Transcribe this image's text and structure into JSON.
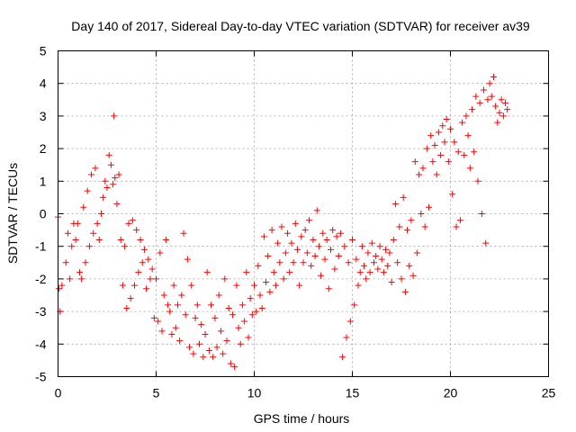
{
  "chart_data": {
    "type": "scatter",
    "title": "Day 140 of 2017, Sidereal Day-to-day VTEC variation (SDTVAR) for receiver av39",
    "xlabel": "GPS time / hours",
    "ylabel": "SDTVAR / TECUs",
    "xlim": [
      0,
      25
    ],
    "ylim": [
      -5,
      5
    ],
    "xticks": [
      0,
      5,
      10,
      15,
      20,
      25
    ],
    "yticks": [
      -5,
      -4,
      -3,
      -2,
      -1,
      0,
      1,
      2,
      3,
      4,
      5
    ],
    "grid": true,
    "marker": "+",
    "color": "#ff0000",
    "series": [
      {
        "name": "SDTVAR",
        "points": [
          [
            0.0,
            -0.1
          ],
          [
            0.05,
            -2.3
          ],
          [
            0.1,
            -3.0
          ],
          [
            0.2,
            -2.2
          ],
          [
            0.4,
            -1.5
          ],
          [
            0.5,
            -0.6
          ],
          [
            0.6,
            -2.0
          ],
          [
            0.7,
            -1.0
          ],
          [
            0.8,
            -0.3
          ],
          [
            0.9,
            -0.8
          ],
          [
            1.0,
            -0.3
          ],
          [
            1.1,
            -1.8
          ],
          [
            1.2,
            -2.0
          ],
          [
            1.3,
            0.2
          ],
          [
            1.4,
            -1.5
          ],
          [
            1.5,
            0.7
          ],
          [
            1.6,
            -1.0
          ],
          [
            1.7,
            1.2
          ],
          [
            1.8,
            -0.6
          ],
          [
            1.9,
            1.4
          ],
          [
            2.0,
            -0.3
          ],
          [
            2.1,
            -0.8
          ],
          [
            2.2,
            0.0
          ],
          [
            2.3,
            0.5
          ],
          [
            2.4,
            1.0
          ],
          [
            2.5,
            0.8
          ],
          [
            2.6,
            1.8
          ],
          [
            2.7,
            1.5
          ],
          [
            2.8,
            0.9
          ],
          [
            2.85,
            3.0
          ],
          [
            2.9,
            1.1
          ],
          [
            3.0,
            0.3
          ],
          [
            3.1,
            1.2
          ],
          [
            3.2,
            -0.8
          ],
          [
            3.3,
            -2.2
          ],
          [
            3.4,
            -1.0
          ],
          [
            3.5,
            -2.9
          ],
          [
            3.6,
            -0.3
          ],
          [
            3.7,
            -2.6
          ],
          [
            3.8,
            -0.2
          ],
          [
            3.9,
            -2.2
          ],
          [
            4.0,
            -0.5
          ],
          [
            4.1,
            -1.8
          ],
          [
            4.2,
            -0.8
          ],
          [
            4.3,
            -1.5
          ],
          [
            4.4,
            -1.1
          ],
          [
            4.5,
            -2.3
          ],
          [
            4.6,
            -1.4
          ],
          [
            4.7,
            -2.0
          ],
          [
            4.8,
            -1.7
          ],
          [
            4.9,
            -3.2
          ],
          [
            5.0,
            -2.0
          ],
          [
            5.1,
            -3.3
          ],
          [
            5.2,
            -1.2
          ],
          [
            5.3,
            -3.6
          ],
          [
            5.4,
            -2.5
          ],
          [
            5.5,
            -0.8
          ],
          [
            5.6,
            -2.8
          ],
          [
            5.7,
            -3.0
          ],
          [
            5.8,
            -3.7
          ],
          [
            5.9,
            -2.2
          ],
          [
            6.0,
            -3.5
          ],
          [
            6.1,
            -2.8
          ],
          [
            6.2,
            -3.9
          ],
          [
            6.3,
            -2.5
          ],
          [
            6.4,
            -0.6
          ],
          [
            6.5,
            -3.1
          ],
          [
            6.6,
            -1.4
          ],
          [
            6.7,
            -4.1
          ],
          [
            6.8,
            -2.2
          ],
          [
            6.9,
            -4.3
          ],
          [
            7.0,
            -3.2
          ],
          [
            7.1,
            -2.8
          ],
          [
            7.2,
            -4.0
          ],
          [
            7.3,
            -3.4
          ],
          [
            7.4,
            -4.4
          ],
          [
            7.5,
            -3.7
          ],
          [
            7.6,
            -1.8
          ],
          [
            7.7,
            -4.2
          ],
          [
            7.8,
            -2.8
          ],
          [
            7.9,
            -4.4
          ],
          [
            8.0,
            -3.2
          ],
          [
            8.1,
            -4.1
          ],
          [
            8.2,
            -2.5
          ],
          [
            8.3,
            -3.6
          ],
          [
            8.4,
            -4.3
          ],
          [
            8.5,
            -2.0
          ],
          [
            8.6,
            -3.9
          ],
          [
            8.7,
            -2.9
          ],
          [
            8.8,
            -4.6
          ],
          [
            8.9,
            -3.1
          ],
          [
            9.0,
            -4.7
          ],
          [
            9.1,
            -2.2
          ],
          [
            9.2,
            -3.5
          ],
          [
            9.3,
            -4.0
          ],
          [
            9.4,
            -2.8
          ],
          [
            9.5,
            -3.3
          ],
          [
            9.6,
            -1.8
          ],
          [
            9.7,
            -3.8
          ],
          [
            9.8,
            -2.6
          ],
          [
            9.9,
            -3.1
          ],
          [
            10.0,
            -2.2
          ],
          [
            10.1,
            -3.0
          ],
          [
            10.2,
            -1.6
          ],
          [
            10.3,
            -2.5
          ],
          [
            10.4,
            -2.9
          ],
          [
            10.5,
            -0.7
          ],
          [
            10.6,
            -2.1
          ],
          [
            10.7,
            -1.3
          ],
          [
            10.8,
            -2.4
          ],
          [
            10.9,
            -0.5
          ],
          [
            11.0,
            -1.8
          ],
          [
            11.1,
            -2.2
          ],
          [
            11.2,
            -0.9
          ],
          [
            11.3,
            -1.5
          ],
          [
            11.4,
            -0.4
          ],
          [
            11.5,
            -2.0
          ],
          [
            11.6,
            -1.2
          ],
          [
            11.7,
            -0.6
          ],
          [
            11.8,
            -1.8
          ],
          [
            11.9,
            -0.9
          ],
          [
            12.0,
            -1.5
          ],
          [
            12.1,
            -0.3
          ],
          [
            12.2,
            -1.1
          ],
          [
            12.3,
            -2.2
          ],
          [
            12.4,
            -0.7
          ],
          [
            12.5,
            -1.5
          ],
          [
            12.6,
            -0.5
          ],
          [
            12.7,
            -1.2
          ],
          [
            12.8,
            -0.2
          ],
          [
            12.9,
            -1.6
          ],
          [
            13.0,
            -0.8
          ],
          [
            13.1,
            -1.3
          ],
          [
            13.2,
            0.1
          ],
          [
            13.3,
            -1.0
          ],
          [
            13.4,
            -1.9
          ],
          [
            13.5,
            -0.6
          ],
          [
            13.6,
            -1.4
          ],
          [
            13.7,
            -0.8
          ],
          [
            13.8,
            -2.3
          ],
          [
            13.9,
            -1.1
          ],
          [
            14.0,
            -0.5
          ],
          [
            14.1,
            -1.7
          ],
          [
            14.2,
            -0.7
          ],
          [
            14.3,
            -1.3
          ],
          [
            14.4,
            -0.6
          ],
          [
            14.5,
            -4.4
          ],
          [
            14.6,
            -1.0
          ],
          [
            14.7,
            -3.8
          ],
          [
            14.8,
            -1.5
          ],
          [
            14.9,
            -3.3
          ],
          [
            15.0,
            -0.8
          ],
          [
            15.1,
            -2.8
          ],
          [
            15.2,
            -1.4
          ],
          [
            15.3,
            -2.2
          ],
          [
            15.4,
            -1.8
          ],
          [
            15.5,
            -1.0
          ],
          [
            15.6,
            -1.6
          ],
          [
            15.7,
            -2.0
          ],
          [
            15.8,
            -1.2
          ],
          [
            15.9,
            -1.8
          ],
          [
            16.0,
            -0.9
          ],
          [
            16.1,
            -1.5
          ],
          [
            16.2,
            -1.3
          ],
          [
            16.3,
            -1.7
          ],
          [
            16.4,
            -1.0
          ],
          [
            16.5,
            -1.4
          ],
          [
            16.6,
            -1.8
          ],
          [
            16.7,
            -1.1
          ],
          [
            16.8,
            -1.6
          ],
          [
            16.9,
            -1.2
          ],
          [
            17.0,
            -2.1
          ],
          [
            17.1,
            -0.8
          ],
          [
            17.2,
            0.3
          ],
          [
            17.3,
            -1.5
          ],
          [
            17.4,
            -0.4
          ],
          [
            17.5,
            -2.0
          ],
          [
            17.6,
            0.5
          ],
          [
            17.7,
            -2.4
          ],
          [
            17.8,
            -0.5
          ],
          [
            17.9,
            -1.6
          ],
          [
            18.0,
            -0.2
          ],
          [
            18.1,
            -1.9
          ],
          [
            18.2,
            1.6
          ],
          [
            18.3,
            -1.2
          ],
          [
            18.4,
            1.2
          ],
          [
            18.5,
            0.0
          ],
          [
            18.6,
            1.4
          ],
          [
            18.7,
            -0.4
          ],
          [
            18.8,
            2.0
          ],
          [
            18.9,
            0.2
          ],
          [
            19.0,
            2.4
          ],
          [
            19.1,
            1.6
          ],
          [
            19.2,
            2.1
          ],
          [
            19.3,
            1.2
          ],
          [
            19.4,
            2.5
          ],
          [
            19.5,
            1.8
          ],
          [
            19.6,
            2.7
          ],
          [
            19.7,
            2.2
          ],
          [
            19.8,
            2.9
          ],
          [
            19.9,
            1.6
          ],
          [
            20.0,
            2.6
          ],
          [
            20.1,
            0.6
          ],
          [
            20.2,
            2.2
          ],
          [
            20.3,
            -0.4
          ],
          [
            20.4,
            1.9
          ],
          [
            20.5,
            -0.2
          ],
          [
            20.6,
            2.8
          ],
          [
            20.7,
            1.8
          ],
          [
            20.8,
            3.0
          ],
          [
            20.9,
            2.4
          ],
          [
            21.0,
            1.4
          ],
          [
            21.1,
            3.2
          ],
          [
            21.2,
            1.9
          ],
          [
            21.3,
            3.6
          ],
          [
            21.4,
            1.0
          ],
          [
            21.5,
            3.4
          ],
          [
            21.6,
            0.0
          ],
          [
            21.7,
            3.8
          ],
          [
            21.8,
            -0.9
          ],
          [
            21.9,
            3.5
          ],
          [
            22.0,
            4.0
          ],
          [
            22.1,
            3.6
          ],
          [
            22.2,
            4.2
          ],
          [
            22.3,
            3.3
          ],
          [
            22.4,
            2.8
          ],
          [
            22.5,
            3.1
          ],
          [
            22.6,
            3.5
          ],
          [
            22.7,
            3.0
          ],
          [
            22.8,
            3.4
          ],
          [
            22.9,
            3.2
          ]
        ]
      }
    ]
  }
}
